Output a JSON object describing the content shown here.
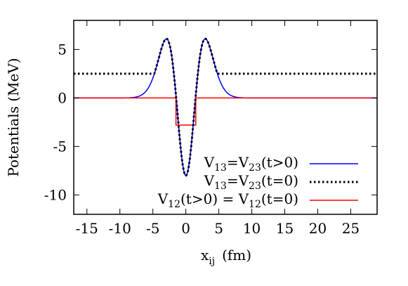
{
  "chart_data": {
    "type": "line",
    "xlabel": "x_ij  (fm)",
    "xlabel_main": "x",
    "xlabel_sub": "ij",
    "xlabel_unit": "(fm)",
    "ylabel": "Potentials  (MeV)",
    "xlim": [
      -17,
      29
    ],
    "ylim": [
      -12,
      8
    ],
    "xticks": [
      -15,
      -10,
      -5,
      0,
      5,
      10,
      15,
      20,
      25
    ],
    "yticks": [
      5,
      0,
      -5,
      -10
    ],
    "grid": false,
    "legend_position": "bottom-right",
    "series": [
      {
        "name": "V13=V23(t>0)",
        "legend_parts": [
          {
            "t": "V",
            "sub": false
          },
          {
            "t": "13",
            "sub": true
          },
          {
            "t": "=V",
            "sub": false
          },
          {
            "t": "23",
            "sub": true
          },
          {
            "t": "(t>0)",
            "sub": false
          }
        ],
        "color": "#0000ff",
        "style": "solid",
        "function": {
          "kind": "gaussian_pair",
          "repulsive_amplitude": 25.0,
          "repulsive_width": 3.2,
          "attractive_amplitude": 33.0,
          "attractive_width": 2.1
        }
      },
      {
        "name": "V13=V23(t=0)",
        "legend_parts": [
          {
            "t": "V",
            "sub": false
          },
          {
            "t": "13",
            "sub": true
          },
          {
            "t": "=V",
            "sub": false
          },
          {
            "t": "23",
            "sub": true
          },
          {
            "t": "(t=0)",
            "sub": false
          }
        ],
        "color": "#000000",
        "style": "dotted",
        "function": {
          "kind": "gaussian_pair_clipped",
          "repulsive_amplitude": 25.0,
          "repulsive_width": 3.2,
          "attractive_amplitude": 33.0,
          "attractive_width": 2.1,
          "floor": 2.5
        }
      },
      {
        "name": "V12(t>0) = V12(t=0)",
        "legend_parts": [
          {
            "t": "V",
            "sub": false
          },
          {
            "t": "12",
            "sub": true
          },
          {
            "t": "(t>0) = V",
            "sub": false
          },
          {
            "t": "12",
            "sub": true
          },
          {
            "t": "(t=0)",
            "sub": false
          }
        ],
        "color": "#ff0000",
        "style": "solid",
        "x": [
          -17,
          -1.5,
          -1.5,
          1.5,
          1.5,
          29
        ],
        "y": [
          0,
          0,
          -2.8,
          -2.8,
          0,
          0
        ]
      }
    ]
  }
}
